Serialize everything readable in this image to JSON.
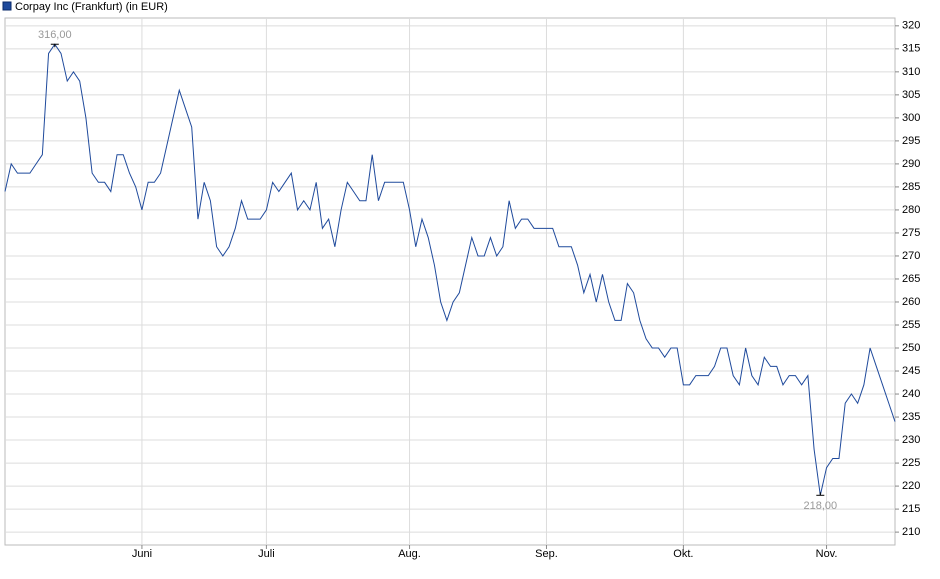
{
  "chart_data": {
    "type": "line",
    "series": [
      {
        "name": "Corpay Inc (Frankfurt) (in EUR)",
        "color": "#1f4a9c",
        "values": [
          284,
          290,
          288,
          288,
          288,
          290,
          292,
          314,
          316,
          314,
          308,
          310,
          308,
          300,
          288,
          286,
          286,
          284,
          292,
          292,
          288,
          285,
          280,
          286,
          286,
          288,
          294,
          300,
          306,
          302,
          298,
          278,
          286,
          282,
          272,
          270,
          272,
          276,
          282,
          278,
          278,
          278,
          280,
          286,
          284,
          286,
          288,
          280,
          282,
          280,
          286,
          276,
          278,
          272,
          280,
          286,
          284,
          282,
          282,
          292,
          282,
          286,
          286,
          286,
          286,
          280,
          272,
          278,
          274,
          268,
          260,
          256,
          260,
          262,
          268,
          274,
          270,
          270,
          274,
          270,
          272,
          282,
          276,
          278,
          278,
          276,
          276,
          276,
          276,
          272,
          272,
          272,
          268,
          262,
          266,
          260,
          266,
          260,
          256,
          256,
          264,
          262,
          256,
          252,
          250,
          250,
          248,
          250,
          250,
          242,
          242,
          244,
          244,
          244,
          246,
          250,
          250,
          244,
          242,
          250,
          244,
          242,
          248,
          246,
          246,
          242,
          244,
          244,
          242,
          244,
          228,
          218,
          224,
          226,
          226,
          238,
          240,
          238,
          242,
          250,
          246,
          242,
          238,
          234
        ]
      }
    ],
    "categories": [
      null,
      null,
      null,
      null,
      null,
      null,
      null,
      null,
      null,
      null,
      null,
      null,
      null,
      null,
      null,
      null,
      null,
      null,
      null,
      null,
      null,
      null,
      "Juni",
      null,
      null,
      null,
      null,
      null,
      null,
      null,
      null,
      null,
      null,
      null,
      null,
      null,
      null,
      null,
      null,
      null,
      null,
      null,
      "Juli",
      null,
      null,
      null,
      null,
      null,
      null,
      null,
      null,
      null,
      null,
      null,
      null,
      null,
      null,
      null,
      null,
      null,
      null,
      null,
      null,
      null,
      null,
      "Aug.",
      null,
      null,
      null,
      null,
      null,
      null,
      null,
      null,
      null,
      null,
      null,
      null,
      null,
      null,
      null,
      null,
      null,
      null,
      null,
      null,
      null,
      "Sep.",
      null,
      null,
      null,
      null,
      null,
      null,
      null,
      null,
      null,
      null,
      null,
      null,
      null,
      null,
      null,
      null,
      null,
      null,
      null,
      null,
      null,
      "Okt.",
      null,
      null,
      null,
      null,
      null,
      null,
      null,
      null,
      null,
      null,
      null,
      null,
      null,
      null,
      null,
      null,
      null,
      null,
      null,
      null,
      null,
      null,
      "Nov.",
      null,
      null,
      null,
      null,
      null,
      null,
      null,
      null,
      null,
      null,
      null
    ],
    "annotations": [
      {
        "text": "316,00",
        "value": 316
      },
      {
        "text": "218,00",
        "value": 218
      }
    ],
    "ylim": [
      207.2,
      321.7
    ],
    "yticks": [
      210,
      215,
      220,
      225,
      230,
      235,
      240,
      245,
      250,
      255,
      260,
      265,
      270,
      275,
      280,
      285,
      290,
      295,
      300,
      305,
      310,
      315,
      320
    ],
    "grid": true,
    "y_axis_side": "right"
  }
}
